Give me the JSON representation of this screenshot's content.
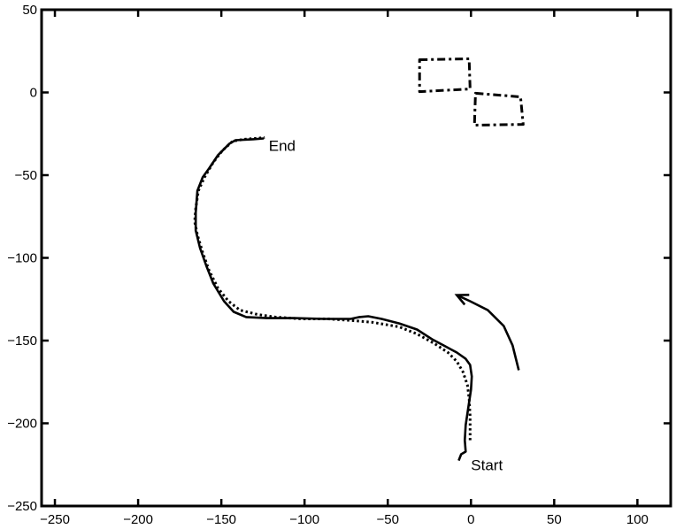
{
  "chart_data": {
    "type": "line",
    "title": "",
    "xlabel": "",
    "ylabel": "",
    "xlim": [
      -258,
      120
    ],
    "ylim": [
      -250,
      50
    ],
    "xticks": [
      -250,
      -200,
      -150,
      -100,
      -50,
      0,
      50,
      100
    ],
    "yticks": [
      50,
      0,
      -50,
      -100,
      -150,
      -200,
      -250
    ],
    "xtick_labels": [
      "−250",
      "−200",
      "−150",
      "−100",
      "−50",
      "0",
      "50",
      "100"
    ],
    "ytick_labels": [
      "50",
      "0",
      "−50",
      "−100",
      "−150",
      "−200",
      "−250"
    ],
    "grid": false,
    "colors": {
      "line": "#000000"
    },
    "series": [
      {
        "style": "solid",
        "x": [
          -7.4,
          -5.9,
          -3.2,
          -3.7,
          -3.2,
          -1.6,
          0,
          0.5,
          -0.5,
          -3.2,
          -8.5,
          -16.5,
          -23.4,
          -32.4,
          -43.1,
          -53.7,
          -61.7,
          -67,
          -72.3,
          -88.3,
          -106.9,
          -122.9,
          -135.1,
          -142.6,
          -148.4,
          -154.8,
          -159,
          -162.8,
          -165.4,
          -165.4,
          -164.4,
          -161.2,
          -157.4,
          -152.1,
          -145.2,
          -141.5,
          -130.9,
          -124.5
        ],
        "y": [
          -222.5,
          -218.7,
          -217.1,
          -210.2,
          -201.1,
          -190.4,
          -179.7,
          -171.7,
          -164.7,
          -161,
          -157.2,
          -152.9,
          -149.2,
          -143.3,
          -139.6,
          -136.9,
          -135.3,
          -135.8,
          -136.9,
          -136.9,
          -136.4,
          -136.4,
          -135.8,
          -132.6,
          -126.2,
          -115.5,
          -104.8,
          -94.1,
          -83.4,
          -72.7,
          -59.4,
          -51.3,
          -46,
          -38,
          -31,
          -28.9,
          -28.3,
          -27.8
        ]
      },
      {
        "style": "dotted",
        "x": [
          -0.5,
          -0.5,
          -1.1,
          -2.1,
          -4.8,
          -8.5,
          -13.8,
          -21.8,
          -32.4,
          -43.1,
          -59,
          -69.7,
          -85.6,
          -101.6,
          -117.6,
          -128.2,
          -138.8,
          -145.7,
          -152.1,
          -157.4,
          -161.2,
          -164.4,
          -166,
          -165.4,
          -163.8,
          -160.1,
          -154.8,
          -149.5,
          -143.1,
          -136.2,
          -123.9
        ],
        "y": [
          -210.2,
          -195.7,
          -185,
          -177,
          -169,
          -162.6,
          -157.2,
          -151.9,
          -146,
          -141.7,
          -139,
          -138,
          -136.9,
          -136.9,
          -135.8,
          -134.2,
          -131.6,
          -126.2,
          -118.2,
          -107.5,
          -96.8,
          -86.1,
          -78.1,
          -70.1,
          -59.4,
          -51.3,
          -42.2,
          -35.3,
          -29.4,
          -28.3,
          -27.3
        ]
      },
      {
        "style": "dashdot",
        "closed": true,
        "x": [
          -30.9,
          -1.1,
          -0.5,
          -30.9
        ],
        "y": [
          19.8,
          20.3,
          2.1,
          0.5
        ]
      },
      {
        "style": "dashdot",
        "closed": true,
        "x": [
          2.7,
          29.8,
          31.4,
          2.1
        ],
        "y": [
          -0.5,
          -2.7,
          -19.3,
          -19.8
        ]
      }
    ],
    "arrow": {
      "x": [
        28.7,
        25,
        19.7,
        10.1,
        -0.5,
        -8.5
      ],
      "y": [
        -167.9,
        -152.9,
        -141.2,
        -131.6,
        -126.2,
        -122.5
      ]
    },
    "annotations": [
      {
        "text": "End",
        "x": -121.5,
        "y": -32
      },
      {
        "text": "Start",
        "x": 0,
        "y": -225
      }
    ]
  }
}
